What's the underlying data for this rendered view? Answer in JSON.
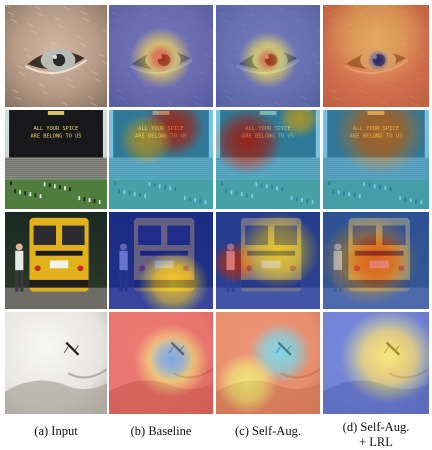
{
  "figure": {
    "columns": [
      {
        "caption_lines": [
          "(a) Input"
        ]
      },
      {
        "caption_lines": [
          "(b) Baseline"
        ]
      },
      {
        "caption_lines": [
          "(c) Self-Aug."
        ]
      },
      {
        "caption_lines": [
          "(d) Self-Aug.",
          "+ LRL"
        ]
      }
    ],
    "rows": [
      {
        "name": "eye",
        "scene_text": []
      },
      {
        "name": "scoreboard",
        "scene_text": [
          "ALL YOUR SPICE",
          "ARE BELONG TO US"
        ]
      },
      {
        "name": "school-bus",
        "scene_text": []
      },
      {
        "name": "insect",
        "scene_text": []
      }
    ]
  }
}
